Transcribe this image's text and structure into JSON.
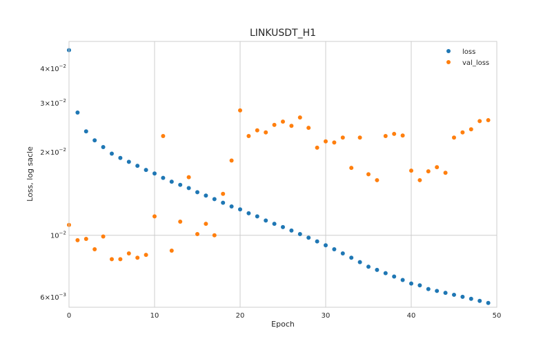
{
  "chart_data": {
    "type": "scatter",
    "title": "LINKUSDT_H1",
    "xlabel": "Epoch",
    "ylabel": "Loss, log sacle",
    "xlim": [
      0,
      50
    ],
    "ylim": [
      0.0055,
      0.05
    ],
    "yscale": "log",
    "grid": true,
    "legend_position": "top-right",
    "x_ticks": [
      {
        "value": 0,
        "label": "0"
      },
      {
        "value": 10,
        "label": "10"
      },
      {
        "value": 20,
        "label": "20"
      },
      {
        "value": 30,
        "label": "30"
      },
      {
        "value": 40,
        "label": "40"
      },
      {
        "value": 50,
        "label": "50"
      }
    ],
    "y_ticks": [
      {
        "value": 0.006,
        "mantissa": "6",
        "exponent": "−3"
      },
      {
        "value": 0.01,
        "mantissa": "10",
        "exponent": "−2"
      },
      {
        "value": 0.02,
        "mantissa": "2",
        "exponent": "−2"
      },
      {
        "value": 0.03,
        "mantissa": "3",
        "exponent": "−2"
      },
      {
        "value": 0.04,
        "mantissa": "4",
        "exponent": "−2"
      }
    ],
    "series": [
      {
        "name": "loss",
        "color": "#1f77b4",
        "x": [
          0,
          1,
          2,
          3,
          4,
          5,
          6,
          7,
          8,
          9,
          10,
          11,
          12,
          13,
          14,
          15,
          16,
          17,
          18,
          19,
          20,
          21,
          22,
          23,
          24,
          25,
          26,
          27,
          28,
          29,
          30,
          31,
          32,
          33,
          34,
          35,
          36,
          37,
          38,
          39,
          40,
          41,
          42,
          43,
          44,
          45,
          46,
          47,
          48,
          49
        ],
        "y": [
          0.0465,
          0.0277,
          0.0237,
          0.022,
          0.0208,
          0.0197,
          0.019,
          0.0184,
          0.0178,
          0.0172,
          0.0167,
          0.0161,
          0.0156,
          0.0152,
          0.0148,
          0.0143,
          0.0139,
          0.0135,
          0.0131,
          0.0127,
          0.0124,
          0.012,
          0.0117,
          0.0113,
          0.011,
          0.0107,
          0.0104,
          0.0101,
          0.0098,
          0.0095,
          0.0092,
          0.0089,
          0.0086,
          0.0083,
          0.008,
          0.0077,
          0.0075,
          0.0073,
          0.0071,
          0.0069,
          0.0067,
          0.0066,
          0.0064,
          0.0063,
          0.0062,
          0.0061,
          0.006,
          0.0059,
          0.0058,
          0.0057
        ]
      },
      {
        "name": "val_loss",
        "color": "#ff7f0e",
        "x": [
          0,
          1,
          2,
          3,
          4,
          5,
          6,
          7,
          8,
          9,
          10,
          11,
          12,
          13,
          14,
          15,
          16,
          17,
          18,
          19,
          20,
          21,
          22,
          23,
          24,
          25,
          26,
          27,
          28,
          29,
          30,
          31,
          32,
          33,
          34,
          35,
          36,
          37,
          38,
          39,
          40,
          41,
          42,
          43,
          44,
          45,
          46,
          47,
          48,
          49
        ],
        "y": [
          0.0109,
          0.0096,
          0.0097,
          0.0089,
          0.0099,
          0.0082,
          0.0082,
          0.0086,
          0.0083,
          0.0085,
          0.0117,
          0.0228,
          0.0088,
          0.0112,
          0.0162,
          0.0101,
          0.011,
          0.01,
          0.0141,
          0.0186,
          0.0282,
          0.0228,
          0.0239,
          0.0235,
          0.025,
          0.0257,
          0.0248,
          0.0266,
          0.0244,
          0.0207,
          0.0218,
          0.0216,
          0.0225,
          0.0175,
          0.0225,
          0.0166,
          0.0158,
          0.0228,
          0.0232,
          0.0229,
          0.0171,
          0.0158,
          0.017,
          0.0176,
          0.0168,
          0.0225,
          0.0235,
          0.0241,
          0.0258,
          0.026
        ]
      }
    ]
  }
}
